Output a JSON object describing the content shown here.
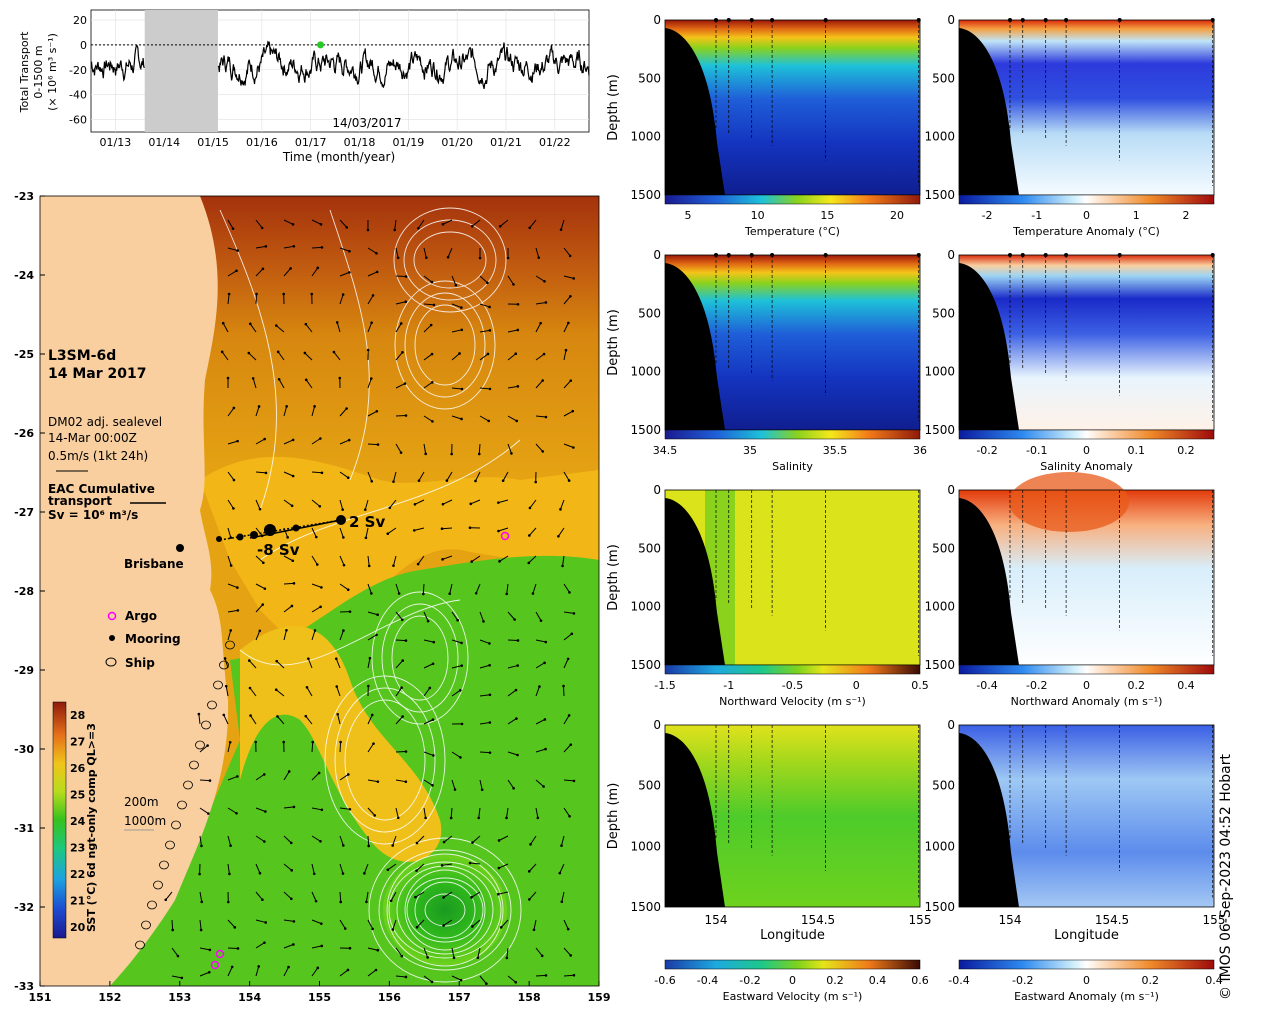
{
  "colors": {
    "land": "#f9cfa0",
    "black": "#000000",
    "grid": "#bbbbbb",
    "gap": "#cccccc",
    "transport_dot": "#22cc22"
  },
  "transport": {
    "ylabel_lines": [
      "Total Transport",
      "0-1500 m",
      "(× 10⁶ m³ s⁻¹)"
    ],
    "xlabel": "Time (month/year)",
    "date_label": "14/03/2017",
    "yticks": [
      "20",
      "0",
      "-20",
      "-40",
      "-60"
    ],
    "xticks": [
      "01/13",
      "01/14",
      "01/15",
      "01/16",
      "01/17",
      "01/18",
      "01/19",
      "01/20",
      "01/21",
      "01/22"
    ]
  },
  "chart_data": [
    {
      "type": "line",
      "id": "transport",
      "x_range": [
        2012.5,
        2022.7
      ],
      "ylim": [
        -70,
        28
      ],
      "gap": [
        2013.6,
        2015.1
      ],
      "marker_date": 2017.2,
      "series": [
        {
          "values": []
        }
      ]
    },
    {
      "type": "heatmap",
      "id": "sst-map",
      "title": "L3SM-6d",
      "subtitle": "14 Mar 2017",
      "xlim": [
        151,
        159
      ],
      "ylim": [
        -33,
        -23
      ]
    }
  ],
  "map": {
    "title": "L3SM-6d",
    "date": "14 Mar 2017",
    "info": [
      "DM02 adj. sealevel",
      "14-Mar 00:00Z",
      "0.5m/s (1kt 24h)"
    ],
    "eac_lines": [
      "EAC Cumulative",
      "transport"
    ],
    "eac_unit": "Sv = 10⁶ m³/s",
    "sv_pos": "2 Sv",
    "sv_neg": "-8 Sv",
    "city": "Brisbane",
    "legend": [
      "Argo",
      "Mooring",
      "Ship"
    ],
    "iso": [
      "200m",
      "1000m"
    ],
    "xticks": [
      "151",
      "152",
      "153",
      "154",
      "155",
      "156",
      "157",
      "158",
      "159"
    ],
    "yticks": [
      "-23",
      "-24",
      "-25",
      "-26",
      "-27",
      "-28",
      "-29",
      "-30",
      "-31",
      "-32",
      "-33"
    ],
    "cb_label": "SST (°C) 6d ngt-only comp QL>=3",
    "cb_ticks": [
      "28",
      "27",
      "26",
      "25",
      "24",
      "23",
      "22",
      "21",
      "20"
    ]
  },
  "panels": {
    "depth_label": "Depth (m)",
    "depth_ticks": [
      "0",
      "500",
      "1000",
      "1500"
    ],
    "lon_label": "Longitude",
    "lon_ticks": [
      "154",
      "154.5",
      "155"
    ],
    "temp": {
      "label": "Temperature (°C)",
      "ticks": [
        "5",
        "10",
        "15",
        "20"
      ]
    },
    "temp_anom": {
      "label": "Temperature Anomaly (°C)",
      "ticks": [
        "-2",
        "-1",
        "0",
        "1",
        "2"
      ]
    },
    "sal": {
      "label": "Salinity",
      "ticks": [
        "34.5",
        "35",
        "35.5",
        "36"
      ]
    },
    "sal_anom": {
      "label": "Salinity Anomaly",
      "ticks": [
        "-0.2",
        "-0.1",
        "0",
        "0.1",
        "0.2"
      ]
    },
    "nv": {
      "label": "Northward Velocity (m s⁻¹)",
      "ticks": [
        "-1.5",
        "-1",
        "-0.5",
        "0",
        "0.5"
      ]
    },
    "nv_anom": {
      "label": "Northward Anomaly (m s⁻¹)",
      "ticks": [
        "-0.4",
        "-0.2",
        "0",
        "0.2",
        "0.4"
      ]
    },
    "ev": {
      "label": "Eastward Velocity (m s⁻¹)",
      "ticks": [
        "-0.6",
        "-0.4",
        "-0.2",
        "0",
        "0.2",
        "0.4",
        "0.6"
      ]
    },
    "ev_anom": {
      "label": "Eastward Anomaly (m s⁻¹)",
      "ticks": [
        "-0.4",
        "-0.2",
        "0",
        "0.2",
        "0.4"
      ]
    }
  },
  "credit": "© IMOS 06-Sep-2023 04:52 Hobart"
}
